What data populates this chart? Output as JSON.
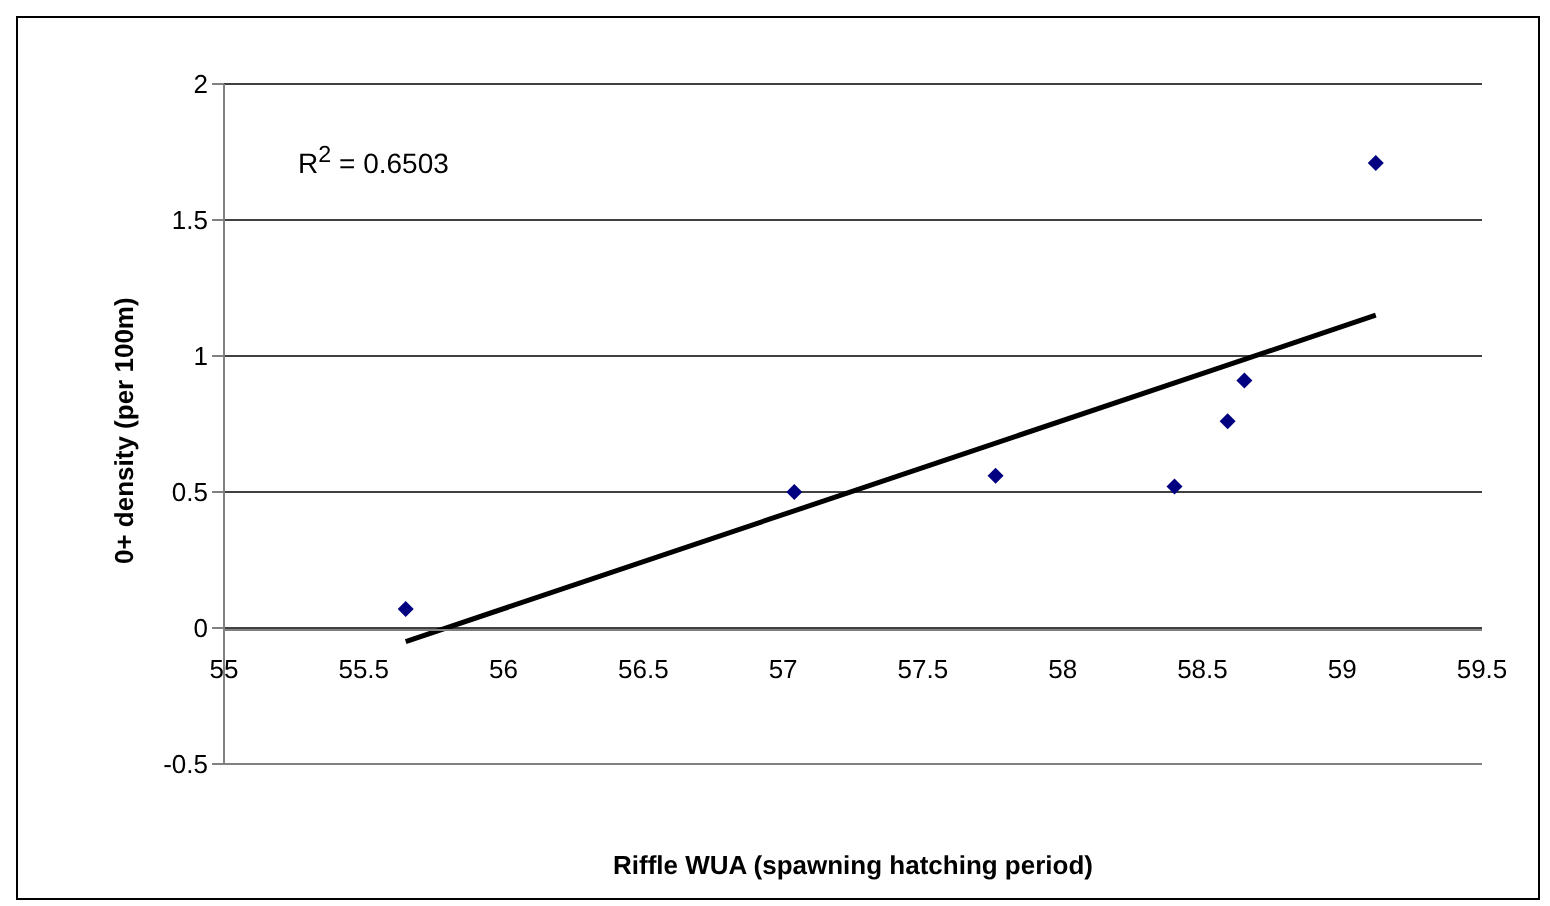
{
  "chart_data": {
    "type": "scatter",
    "xlabel": "Riffle WUA (spawning hatching period)",
    "ylabel": "0+ density (per 100m)",
    "annotations": [
      "R$^{2}$ = 0.6503"
    ],
    "xlim": [
      55,
      59.5
    ],
    "xticks": [
      55,
      55.5,
      56,
      56.5,
      57,
      57.5,
      58,
      58.5,
      59,
      59.5
    ],
    "ylim": [
      -0.5,
      2
    ],
    "yticks": [
      -0.5,
      0,
      0.5,
      1,
      1.5,
      2
    ],
    "grid": "y",
    "legend": false,
    "series": [
      {
        "color": "#000080",
        "marker": "diamond",
        "x": [
          55.65,
          57.04,
          57.76,
          58.4,
          58.59,
          58.65,
          59.12
        ],
        "values": [
          0.07,
          0.5,
          0.56,
          0.52,
          0.76,
          0.91,
          1.71
        ]
      },
      {
        "type": "line",
        "color": "#000000",
        "marker": "none",
        "line_style": "solid",
        "x": [
          55.65,
          59.12
        ],
        "values": [
          -0.05,
          1.15
        ]
      }
    ]
  }
}
